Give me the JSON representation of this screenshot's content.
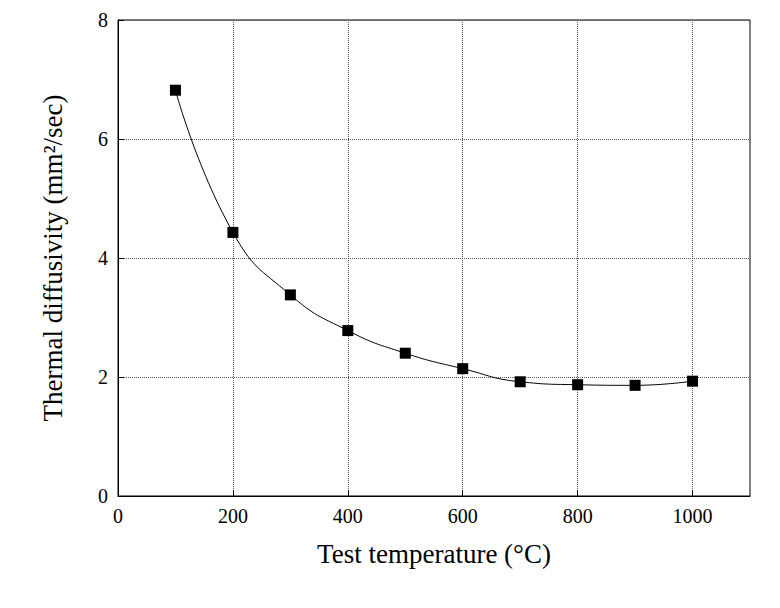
{
  "chart_data": {
    "type": "line",
    "xlabel": "Test temperature (°C)",
    "ylabel": "Thermal diffusivity (mm²/sec)",
    "x": [
      100,
      200,
      300,
      400,
      500,
      600,
      700,
      800,
      900,
      1000
    ],
    "values": [
      6.82,
      4.43,
      3.38,
      2.78,
      2.4,
      2.14,
      1.92,
      1.87,
      1.86,
      1.93
    ],
    "color": "#000000",
    "marker": "square",
    "line_style": "solid",
    "xlim": [
      0,
      1100
    ],
    "xticks": [
      0,
      200,
      400,
      600,
      800,
      1000
    ],
    "ylim": [
      0,
      8
    ],
    "yticks": [
      0,
      2,
      4,
      6,
      8
    ],
    "grid": true
  }
}
